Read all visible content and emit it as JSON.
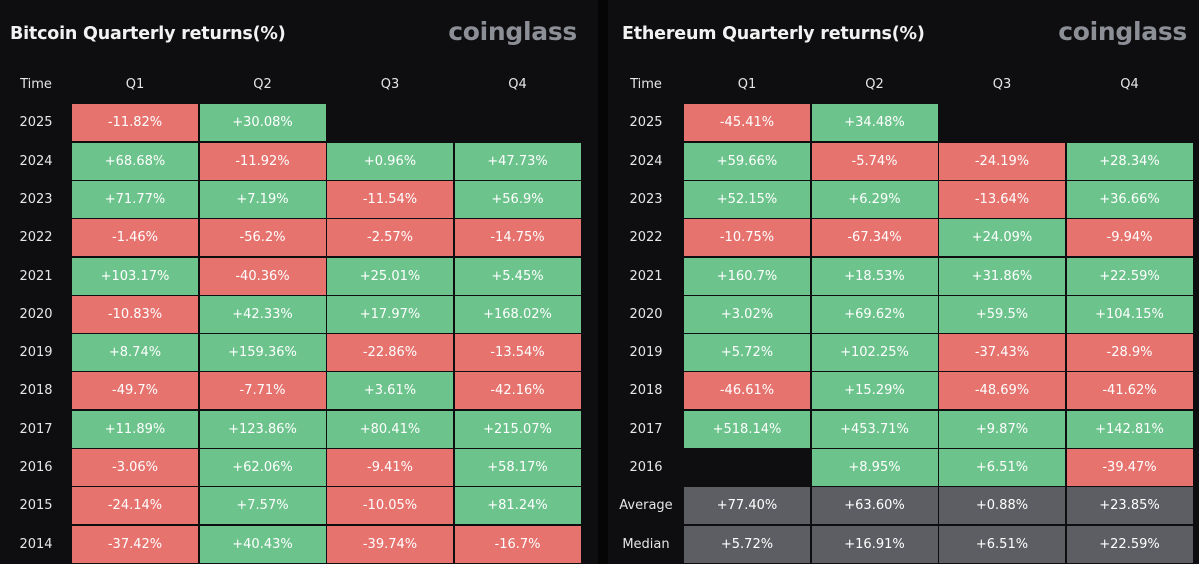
{
  "chart_data": [
    {
      "type": "table",
      "title": "Bitcoin Quarterly returns(%)",
      "logo": "coinglass",
      "columns": [
        "Time",
        "Q1",
        "Q2",
        "Q3",
        "Q4"
      ],
      "rows": [
        {
          "time": "2025",
          "values": [
            "-11.82%",
            "+30.08%",
            "",
            ""
          ]
        },
        {
          "time": "2024",
          "values": [
            "+68.68%",
            "-11.92%",
            "+0.96%",
            "+47.73%"
          ]
        },
        {
          "time": "2023",
          "values": [
            "+71.77%",
            "+7.19%",
            "-11.54%",
            "+56.9%"
          ]
        },
        {
          "time": "2022",
          "values": [
            "-1.46%",
            "-56.2%",
            "-2.57%",
            "-14.75%"
          ]
        },
        {
          "time": "2021",
          "values": [
            "+103.17%",
            "-40.36%",
            "+25.01%",
            "+5.45%"
          ]
        },
        {
          "time": "2020",
          "values": [
            "-10.83%",
            "+42.33%",
            "+17.97%",
            "+168.02%"
          ]
        },
        {
          "time": "2019",
          "values": [
            "+8.74%",
            "+159.36%",
            "-22.86%",
            "-13.54%"
          ]
        },
        {
          "time": "2018",
          "values": [
            "-49.7%",
            "-7.71%",
            "+3.61%",
            "-42.16%"
          ]
        },
        {
          "time": "2017",
          "values": [
            "+11.89%",
            "+123.86%",
            "+80.41%",
            "+215.07%"
          ]
        },
        {
          "time": "2016",
          "values": [
            "-3.06%",
            "+62.06%",
            "-9.41%",
            "+58.17%"
          ]
        },
        {
          "time": "2015",
          "values": [
            "-24.14%",
            "+7.57%",
            "-10.05%",
            "+81.24%"
          ]
        },
        {
          "time": "2014",
          "values": [
            "-37.42%",
            "+40.43%",
            "-39.74%",
            "-16.7%"
          ]
        }
      ]
    },
    {
      "type": "table",
      "title": "Ethereum Quarterly returns(%)",
      "logo": "coinglass",
      "columns": [
        "Time",
        "Q1",
        "Q2",
        "Q3",
        "Q4"
      ],
      "rows": [
        {
          "time": "2025",
          "values": [
            "-45.41%",
            "+34.48%",
            "",
            ""
          ]
        },
        {
          "time": "2024",
          "values": [
            "+59.66%",
            "-5.74%",
            "-24.19%",
            "+28.34%"
          ]
        },
        {
          "time": "2023",
          "values": [
            "+52.15%",
            "+6.29%",
            "-13.64%",
            "+36.66%"
          ]
        },
        {
          "time": "2022",
          "values": [
            "-10.75%",
            "-67.34%",
            "+24.09%",
            "-9.94%"
          ]
        },
        {
          "time": "2021",
          "values": [
            "+160.7%",
            "+18.53%",
            "+31.86%",
            "+22.59%"
          ]
        },
        {
          "time": "2020",
          "values": [
            "+3.02%",
            "+69.62%",
            "+59.5%",
            "+104.15%"
          ]
        },
        {
          "time": "2019",
          "values": [
            "+5.72%",
            "+102.25%",
            "-37.43%",
            "-28.9%"
          ]
        },
        {
          "time": "2018",
          "values": [
            "-46.61%",
            "+15.29%",
            "-48.69%",
            "-41.62%"
          ]
        },
        {
          "time": "2017",
          "values": [
            "+518.14%",
            "+453.71%",
            "+9.87%",
            "+142.81%"
          ]
        },
        {
          "time": "2016",
          "values": [
            "",
            "+8.95%",
            "+6.51%",
            "-39.47%"
          ]
        },
        {
          "time": "Average",
          "summary": true,
          "values": [
            "+77.40%",
            "+63.60%",
            "+0.88%",
            "+23.85%"
          ]
        },
        {
          "time": "Median",
          "summary": true,
          "values": [
            "+5.72%",
            "+16.91%",
            "+6.51%",
            "+22.59%"
          ]
        }
      ]
    }
  ],
  "colors": {
    "positive": "#6cc48c",
    "negative": "#e7736f",
    "summary": "#5d5e63",
    "background": "#0e0e10"
  }
}
